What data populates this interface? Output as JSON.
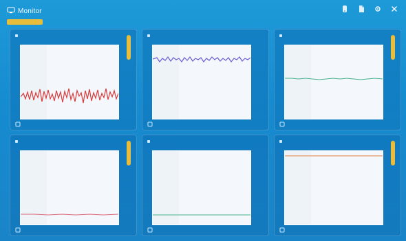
{
  "app": {
    "title": "Monitor",
    "colors": {
      "background": "#1a8fd0",
      "accent": "#e8bd3b",
      "plot_bg": "#f4f7fb"
    }
  },
  "topbar": {
    "icons": [
      {
        "name": "device-icon"
      },
      {
        "name": "document-icon"
      },
      {
        "name": "settings-icon"
      },
      {
        "name": "close-icon"
      }
    ]
  },
  "panels": [
    {
      "title": "",
      "line_color": "#d93a3a"
    },
    {
      "title": "",
      "line_color": "#6b5bd6"
    },
    {
      "title": "",
      "line_color": "#49b08d"
    },
    {
      "title": "",
      "line_color": "#d96a7a"
    },
    {
      "title": "",
      "line_color": "#49b08d"
    },
    {
      "title": "",
      "line_color": "#e59a6a"
    }
  ]
}
